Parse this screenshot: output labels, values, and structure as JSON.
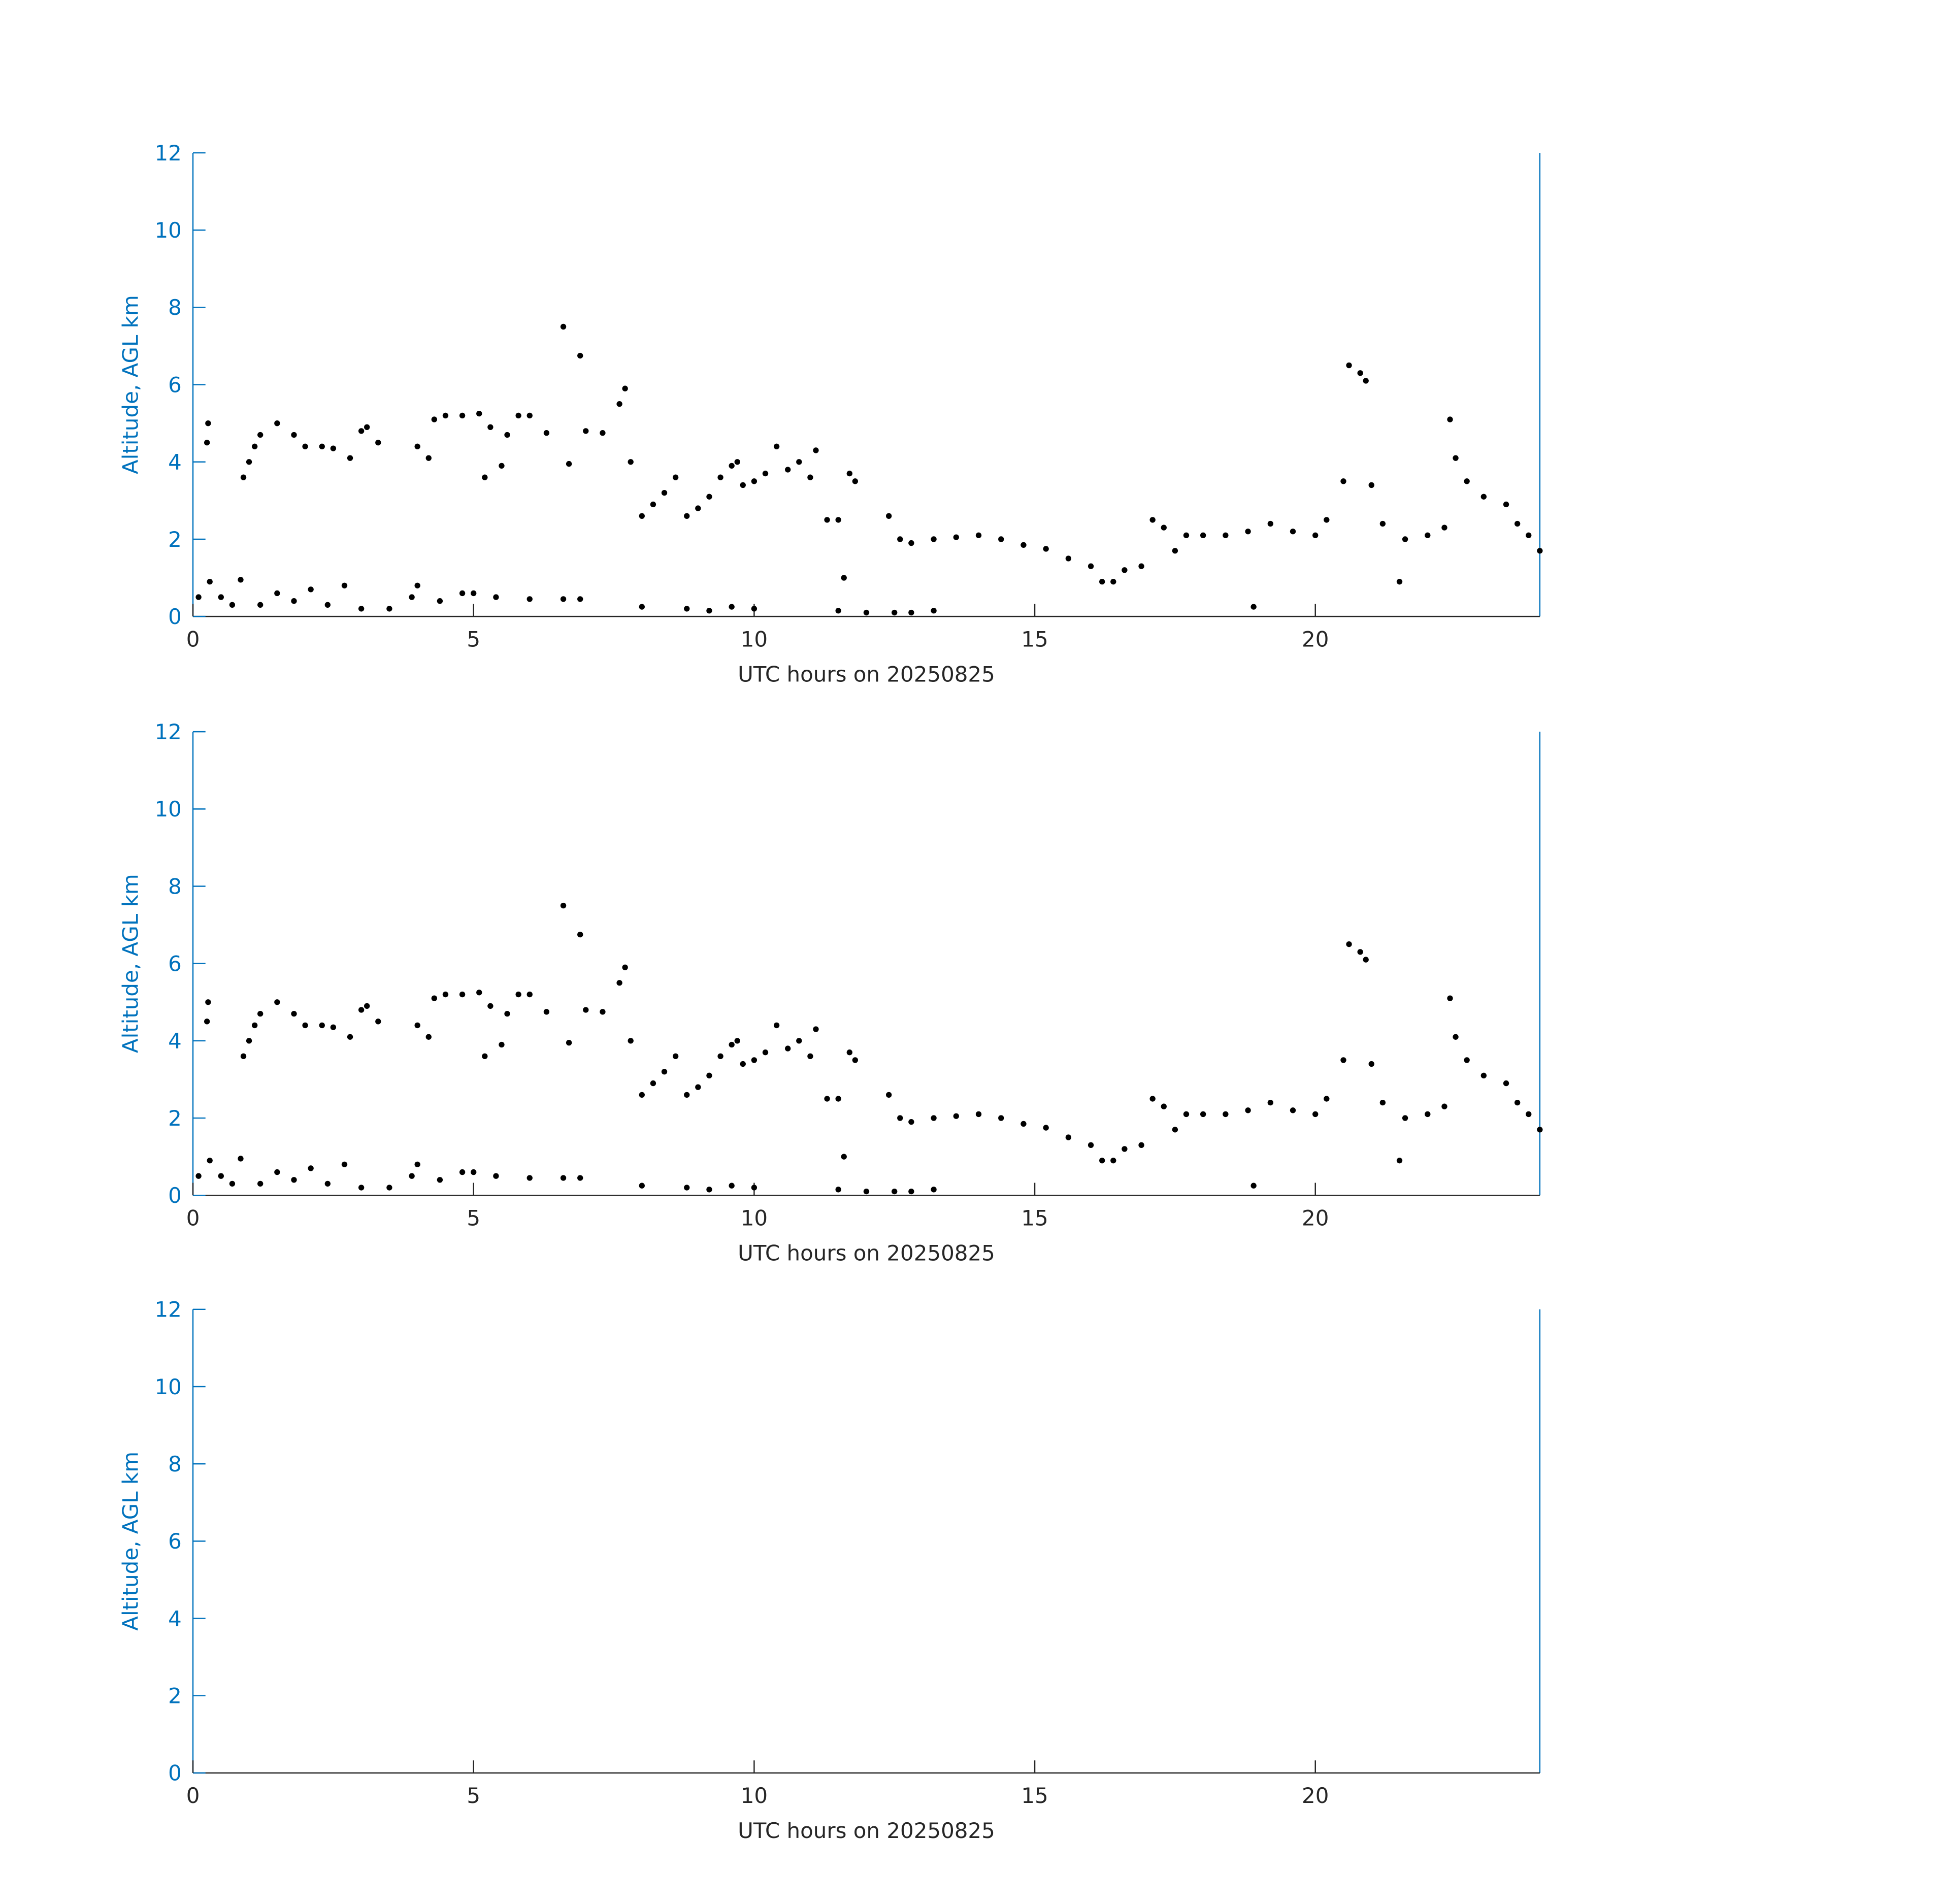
{
  "chart_data": [
    {
      "type": "scatter",
      "xlabel": "UTC hours on 20250825",
      "ylabel": "Altitude, AGL km",
      "color": "#000000",
      "axis_color": "#0072bd",
      "xlim": [
        0,
        24
      ],
      "ylim": [
        0,
        12
      ],
      "xticks": [
        0,
        5,
        10,
        15,
        20
      ],
      "yticks": [
        0,
        2,
        4,
        6,
        8,
        10,
        12
      ],
      "x": [
        0.25,
        0.27,
        0.9,
        1.0,
        1.1,
        1.2,
        1.5,
        1.8,
        2.0,
        2.3,
        2.5,
        2.8,
        3.0,
        3.1,
        3.3,
        4.0,
        4.2,
        4.3,
        4.5,
        4.8,
        5.1,
        5.2,
        5.3,
        5.5,
        5.6,
        5.8,
        6.0,
        6.3,
        6.6,
        6.7,
        6.9,
        7.0,
        7.3,
        7.6,
        7.7,
        7.8,
        8.0,
        8.2,
        8.4,
        8.6,
        8.8,
        9.0,
        9.2,
        9.4,
        9.6,
        9.7,
        9.8,
        10.0,
        10.2,
        10.4,
        10.6,
        10.8,
        11.0,
        11.1,
        11.3,
        11.5,
        11.7,
        11.8,
        11.6,
        12.4,
        12.6,
        12.8,
        13.2,
        13.6,
        14.0,
        14.4,
        14.8,
        15.2,
        15.6,
        16.0,
        16.2,
        16.4,
        16.6,
        16.9,
        17.1,
        17.3,
        17.5,
        17.7,
        18.0,
        18.4,
        18.8,
        19.2,
        19.6,
        20.0,
        20.2,
        20.5,
        20.6,
        20.8,
        20.9,
        21.0,
        21.2,
        21.5,
        21.6,
        22.0,
        22.3,
        22.4,
        22.5,
        22.7,
        23.0,
        23.4,
        23.6,
        23.8,
        24.0,
        0.1,
        0.3,
        0.5,
        0.7,
        0.85,
        1.2,
        1.5,
        1.8,
        2.1,
        2.4,
        2.7,
        3.0,
        3.5,
        3.9,
        4.0,
        4.4,
        4.8,
        5.0,
        5.4,
        6.0,
        6.6,
        6.9,
        8.0,
        8.8,
        9.2,
        9.6,
        10.0,
        11.5,
        12.0,
        12.5,
        12.8,
        13.2,
        18.9
      ],
      "values": [
        4.5,
        5.0,
        3.6,
        4.0,
        4.4,
        4.7,
        5.0,
        4.7,
        4.4,
        4.4,
        4.35,
        4.1,
        4.8,
        4.9,
        4.5,
        4.4,
        4.1,
        5.1,
        5.2,
        5.2,
        5.25,
        3.6,
        4.9,
        3.9,
        4.7,
        5.2,
        5.2,
        4.75,
        7.5,
        3.95,
        6.75,
        4.8,
        4.75,
        5.5,
        5.9,
        4.0,
        2.6,
        2.9,
        3.2,
        3.6,
        2.6,
        2.8,
        3.1,
        3.6,
        3.9,
        4.0,
        3.4,
        3.5,
        3.7,
        4.4,
        3.8,
        4.0,
        3.6,
        4.3,
        2.5,
        2.5,
        3.7,
        3.5,
        1.0,
        2.6,
        2.0,
        1.9,
        2.0,
        2.05,
        2.1,
        2.0,
        1.85,
        1.75,
        1.5,
        1.3,
        0.9,
        0.9,
        1.2,
        1.3,
        2.5,
        2.3,
        1.7,
        2.1,
        2.1,
        2.1,
        2.2,
        2.4,
        2.2,
        2.1,
        2.5,
        3.5,
        6.5,
        6.3,
        6.1,
        3.4,
        2.4,
        0.9,
        2.0,
        2.1,
        2.3,
        5.1,
        4.1,
        3.5,
        3.1,
        2.9,
        2.4,
        2.1,
        1.7,
        0.5,
        0.9,
        0.5,
        0.3,
        0.95,
        0.3,
        0.6,
        0.4,
        0.7,
        0.3,
        0.8,
        0.2,
        0.2,
        0.5,
        0.8,
        0.4,
        0.6,
        0.6,
        0.5,
        0.45,
        0.45,
        0.45,
        0.25,
        0.2,
        0.15,
        0.25,
        0.2,
        0.15,
        0.1,
        0.1,
        0.1,
        0.15,
        0.25
      ]
    },
    {
      "type": "scatter",
      "xlabel": "UTC hours on 20250825",
      "ylabel": "Altitude, AGL km",
      "color": "#000000",
      "axis_color": "#0072bd",
      "xlim": [
        0,
        24
      ],
      "ylim": [
        0,
        12
      ],
      "xticks": [
        0,
        5,
        10,
        15,
        20
      ],
      "yticks": [
        0,
        2,
        4,
        6,
        8,
        10,
        12
      ],
      "x": [
        0.25,
        0.27,
        0.9,
        1.0,
        1.1,
        1.2,
        1.5,
        1.8,
        2.0,
        2.3,
        2.5,
        2.8,
        3.0,
        3.1,
        3.3,
        4.0,
        4.2,
        4.3,
        4.5,
        4.8,
        5.1,
        5.2,
        5.3,
        5.5,
        5.6,
        5.8,
        6.0,
        6.3,
        6.6,
        6.7,
        6.9,
        7.0,
        7.3,
        7.6,
        7.7,
        7.8,
        8.0,
        8.2,
        8.4,
        8.6,
        8.8,
        9.0,
        9.2,
        9.4,
        9.6,
        9.7,
        9.8,
        10.0,
        10.2,
        10.4,
        10.6,
        10.8,
        11.0,
        11.1,
        11.3,
        11.5,
        11.7,
        11.8,
        11.6,
        12.4,
        12.6,
        12.8,
        13.2,
        13.6,
        14.0,
        14.4,
        14.8,
        15.2,
        15.6,
        16.0,
        16.2,
        16.4,
        16.6,
        16.9,
        17.1,
        17.3,
        17.5,
        17.7,
        18.0,
        18.4,
        18.8,
        19.2,
        19.6,
        20.0,
        20.2,
        20.5,
        20.6,
        20.8,
        20.9,
        21.0,
        21.2,
        21.5,
        21.6,
        22.0,
        22.3,
        22.4,
        22.5,
        22.7,
        23.0,
        23.4,
        23.6,
        23.8,
        24.0,
        0.1,
        0.3,
        0.5,
        0.7,
        0.85,
        1.2,
        1.5,
        1.8,
        2.1,
        2.4,
        2.7,
        3.0,
        3.5,
        3.9,
        4.0,
        4.4,
        4.8,
        5.0,
        5.4,
        6.0,
        6.6,
        6.9,
        8.0,
        8.8,
        9.2,
        9.6,
        10.0,
        11.5,
        12.0,
        12.5,
        12.8,
        13.2,
        18.9
      ],
      "values": [
        4.5,
        5.0,
        3.6,
        4.0,
        4.4,
        4.7,
        5.0,
        4.7,
        4.4,
        4.4,
        4.35,
        4.1,
        4.8,
        4.9,
        4.5,
        4.4,
        4.1,
        5.1,
        5.2,
        5.2,
        5.25,
        3.6,
        4.9,
        3.9,
        4.7,
        5.2,
        5.2,
        4.75,
        7.5,
        3.95,
        6.75,
        4.8,
        4.75,
        5.5,
        5.9,
        4.0,
        2.6,
        2.9,
        3.2,
        3.6,
        2.6,
        2.8,
        3.1,
        3.6,
        3.9,
        4.0,
        3.4,
        3.5,
        3.7,
        4.4,
        3.8,
        4.0,
        3.6,
        4.3,
        2.5,
        2.5,
        3.7,
        3.5,
        1.0,
        2.6,
        2.0,
        1.9,
        2.0,
        2.05,
        2.1,
        2.0,
        1.85,
        1.75,
        1.5,
        1.3,
        0.9,
        0.9,
        1.2,
        1.3,
        2.5,
        2.3,
        1.7,
        2.1,
        2.1,
        2.1,
        2.2,
        2.4,
        2.2,
        2.1,
        2.5,
        3.5,
        6.5,
        6.3,
        6.1,
        3.4,
        2.4,
        0.9,
        2.0,
        2.1,
        2.3,
        5.1,
        4.1,
        3.5,
        3.1,
        2.9,
        2.4,
        2.1,
        1.7,
        0.5,
        0.9,
        0.5,
        0.3,
        0.95,
        0.3,
        0.6,
        0.4,
        0.7,
        0.3,
        0.8,
        0.2,
        0.2,
        0.5,
        0.8,
        0.4,
        0.6,
        0.6,
        0.5,
        0.45,
        0.45,
        0.45,
        0.25,
        0.2,
        0.15,
        0.25,
        0.2,
        0.15,
        0.1,
        0.1,
        0.1,
        0.15,
        0.25
      ]
    },
    {
      "type": "scatter",
      "xlabel": "UTC hours on 20250825",
      "ylabel": "Altitude, AGL km",
      "color": "#000000",
      "axis_color": "#0072bd",
      "xlim": [
        0,
        24
      ],
      "ylim": [
        0,
        12
      ],
      "xticks": [
        0,
        5,
        10,
        15,
        20
      ],
      "yticks": [
        0,
        2,
        4,
        6,
        8,
        10,
        12
      ],
      "x": [],
      "values": []
    }
  ]
}
